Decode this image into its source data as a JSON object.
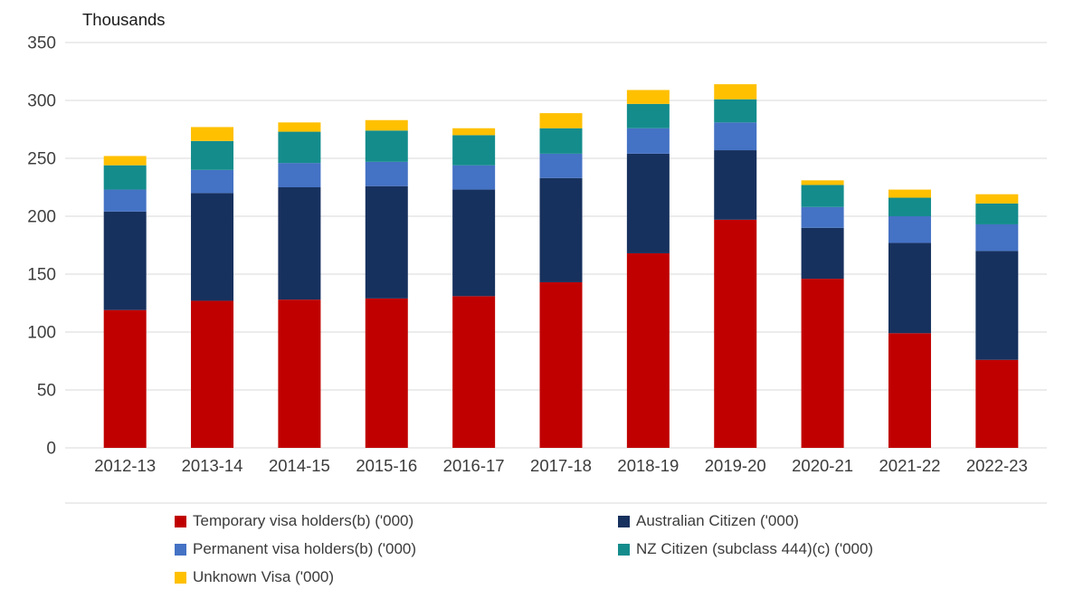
{
  "chart_data": {
    "type": "bar",
    "stacked": true,
    "title": "",
    "ylabel": "Thousands",
    "xlabel": "",
    "ylim": [
      0,
      350
    ],
    "ytick_step": 50,
    "grid": "horizontal",
    "legend_position": "bottom",
    "categories": [
      "2012-13",
      "2013-14",
      "2014-15",
      "2015-16",
      "2016-17",
      "2017-18",
      "2018-19",
      "2019-20",
      "2020-21",
      "2021-22",
      "2022-23"
    ],
    "series": [
      {
        "name": "Temporary visa holders(b) ('000)",
        "color": "#C00000",
        "values": [
          119,
          127,
          128,
          129,
          131,
          143,
          168,
          197,
          146,
          99,
          76
        ]
      },
      {
        "name": "Australian Citizen ('000)",
        "color": "#17315E",
        "values": [
          85,
          93,
          97,
          97,
          92,
          90,
          86,
          60,
          44,
          78,
          94
        ]
      },
      {
        "name": "Permanent visa holders(b) ('000)",
        "color": "#4472C4",
        "values": [
          19,
          20,
          21,
          21,
          21,
          21,
          22,
          24,
          18,
          23,
          23
        ]
      },
      {
        "name": "NZ Citizen (subclass 444)(c) ('000)",
        "color": "#148C8C",
        "values": [
          21,
          25,
          27,
          27,
          26,
          22,
          21,
          20,
          19,
          16,
          18
        ]
      },
      {
        "name": "Unknown Visa ('000)",
        "color": "#FFC000",
        "values": [
          8,
          12,
          8,
          9,
          6,
          13,
          12,
          13,
          4,
          7,
          8
        ]
      }
    ],
    "axis_text_color": "#3f3f3f",
    "gridline_color": "#d9d9d9"
  }
}
